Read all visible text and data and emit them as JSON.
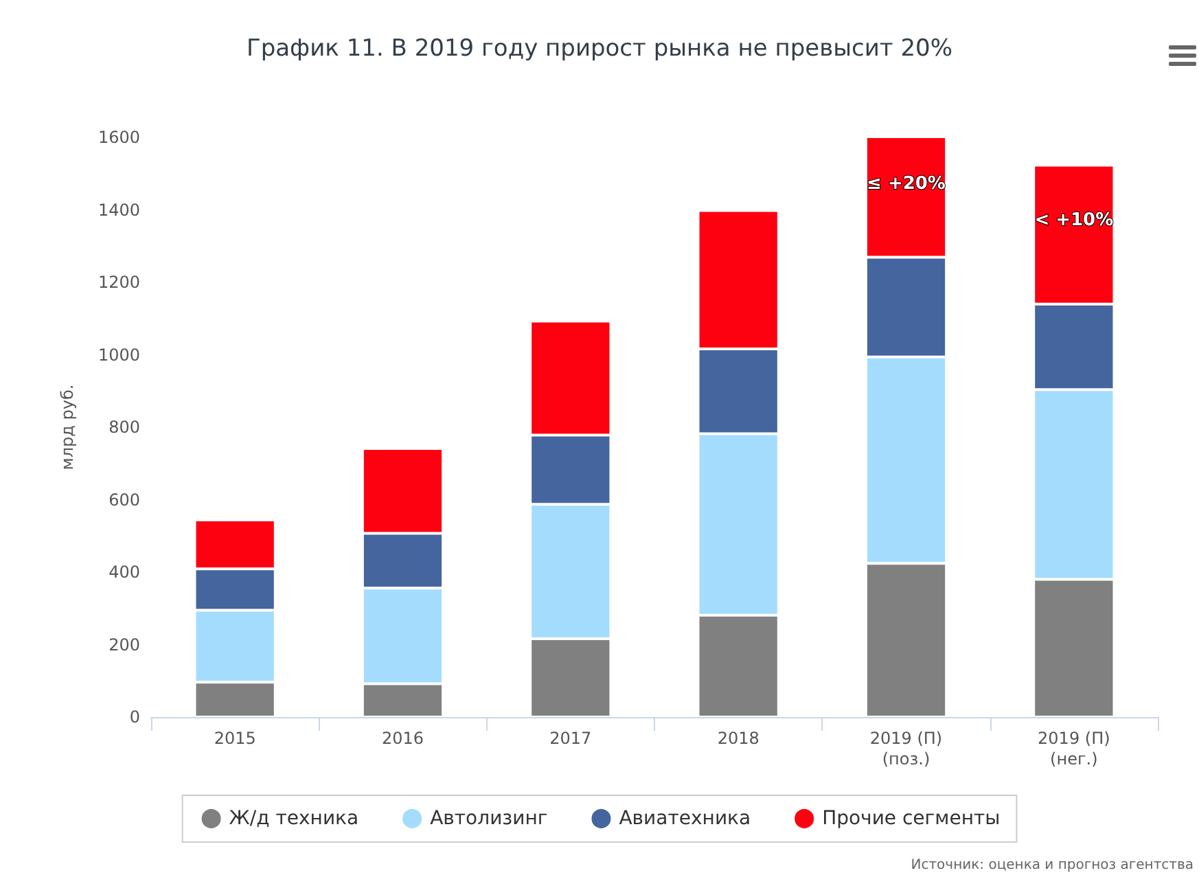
{
  "chart_data": {
    "type": "bar",
    "title": "График 11. В 2019 году прирост рынка не превысит 20%",
    "ylabel": "млрд руб.",
    "categories": [
      "2015",
      "2016",
      "2017",
      "2018",
      "2019 (П)\n(поз.)",
      "2019 (П)\n(нег.)"
    ],
    "stacked": true,
    "series": [
      {
        "name": "Ж/д техника",
        "color": "#808080",
        "values": [
          96,
          92,
          216,
          281,
          424,
          380
        ]
      },
      {
        "name": "Автолизинг",
        "color": "#a4dcfe",
        "values": [
          199,
          264,
          371,
          501,
          570,
          524
        ]
      },
      {
        "name": "Авиатехника",
        "color": "#45659e",
        "values": [
          114,
          151,
          191,
          234,
          275,
          236
        ]
      },
      {
        "name": "Прочие сегменты",
        "color": "#fe0111",
        "values": [
          135,
          234,
          315,
          382,
          336,
          383
        ]
      }
    ],
    "ylim": [
      0,
      1600
    ],
    "yticks": [
      0,
      200,
      400,
      600,
      800,
      1000,
      1200,
      1400,
      1600
    ],
    "grid": false,
    "legend": "bottom",
    "annotations": [
      "≤ +20%",
      "< +10%",
      "Источник: оценка и прогноз агентства"
    ]
  }
}
